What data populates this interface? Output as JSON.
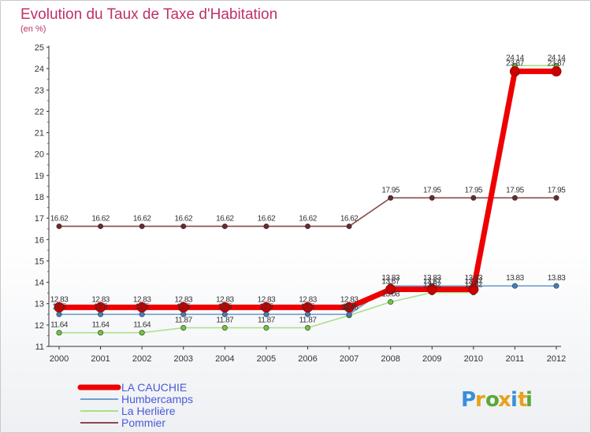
{
  "chart_data": {
    "type": "line",
    "title": "Evolution du Taux de Taxe d'Habitation",
    "ylabel": "(en %)",
    "xlabel": "",
    "ylim": [
      11,
      25
    ],
    "yticks": [
      11,
      12,
      13,
      14,
      15,
      16,
      17,
      18,
      19,
      20,
      21,
      22,
      23,
      24,
      25
    ],
    "categories": [
      "2000",
      "2001",
      "2002",
      "2003",
      "2004",
      "2005",
      "2006",
      "2007",
      "2008",
      "2009",
      "2010",
      "2011",
      "2012"
    ],
    "series": [
      {
        "name": "LA CAUCHIE",
        "color": "#ee0000",
        "marker": "#cc0000",
        "values": [
          12.83,
          12.83,
          12.83,
          12.83,
          12.83,
          12.83,
          12.83,
          12.83,
          13.67,
          13.67,
          13.67,
          23.87,
          23.87
        ],
        "labels": [
          "12.83",
          "12.83",
          "12.83",
          "12.83",
          "12.83",
          "12.83",
          "12.83",
          "12.83",
          "13.67",
          "13.67",
          "13.67",
          "23.87",
          "23.87"
        ]
      },
      {
        "name": "Humbercamps",
        "color": "#6f9fcf",
        "marker": "#3f7fbf",
        "values": [
          12.5,
          12.5,
          12.5,
          12.5,
          12.5,
          12.5,
          12.5,
          12.5,
          13.83,
          13.83,
          13.83,
          13.83,
          13.83
        ],
        "labels": [
          "12.5",
          "12.5",
          "12.5",
          "12.5",
          "12.5",
          "12.5",
          "12.5",
          "12.5",
          "13.83",
          "13.83",
          "13.83",
          "13.83",
          "13.83"
        ]
      },
      {
        "name": "La Herlière",
        "color": "#a8e08a",
        "marker": "#6cc83c",
        "values": [
          11.64,
          11.64,
          11.64,
          11.87,
          11.87,
          11.87,
          11.87,
          12.45,
          13.08,
          13.52,
          13.52,
          24.14,
          24.14
        ],
        "labels": [
          "11.64",
          "11.64",
          "11.64",
          "11.87",
          "11.87",
          "11.87",
          "11.87",
          "12.45",
          "13.08",
          "13.52",
          "13.52",
          "24.14",
          "24.14"
        ]
      },
      {
        "name": "Pommier",
        "color": "#8a4a4a",
        "marker": "#6a2a2a",
        "values": [
          16.62,
          16.62,
          16.62,
          16.62,
          16.62,
          16.62,
          16.62,
          16.62,
          17.95,
          17.95,
          17.95,
          17.95,
          17.95
        ],
        "labels": [
          "16.62",
          "16.62",
          "16.62",
          "16.62",
          "16.62",
          "16.62",
          "16.62",
          "16.62",
          "17.95",
          "17.95",
          "17.95",
          "17.95",
          "17.95"
        ]
      }
    ],
    "legend": "bottom-left",
    "grid": false
  },
  "logo": {
    "letters": [
      "P",
      "r",
      "o",
      "x",
      "i",
      "t",
      "i"
    ],
    "colors": [
      "#3a8fd8",
      "#e5a21a",
      "#5aa83a",
      "#e5a21a",
      "#3a8fd8",
      "#e5a21a",
      "#5aa83a"
    ]
  }
}
